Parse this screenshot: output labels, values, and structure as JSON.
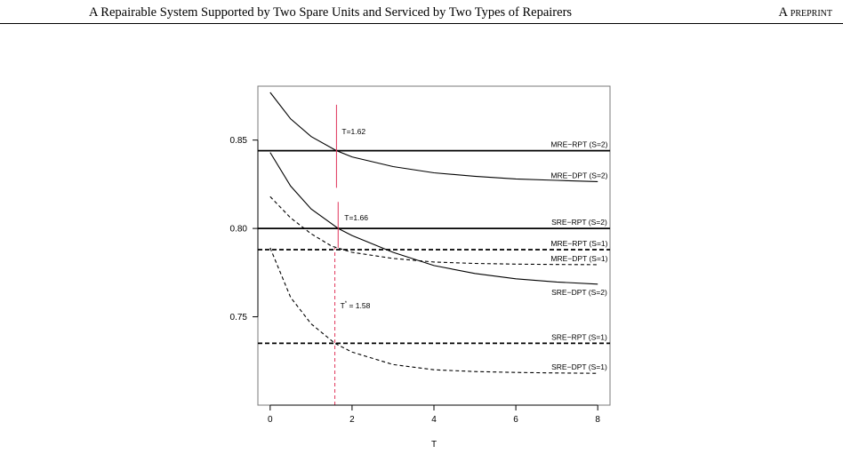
{
  "header": {
    "title": "A Repairable System Supported by Two Spare Units and Serviced by Two Types of Repairers",
    "preprint": "A preprint"
  },
  "chart_data": {
    "type": "line",
    "title": "",
    "xlabel": "T",
    "ylabel": "",
    "xlim": [
      -0.3,
      8.3
    ],
    "ylim": [
      0.7,
      0.8805
    ],
    "xticks": [
      0,
      2,
      4,
      6,
      8
    ],
    "xtick_labels": [
      "0",
      "2",
      "4",
      "6",
      "8"
    ],
    "yticks": [
      0.75,
      0.8,
      0.85
    ],
    "ytick_labels": [
      "0.75",
      "0.80",
      "0.85"
    ],
    "grid": false,
    "series": [
      {
        "name": "MRE−RPT (S=2)",
        "style": "solid",
        "x": [
          -0.3,
          8.3
        ],
        "y": [
          0.844,
          0.844
        ]
      },
      {
        "name": "MRE−DPT (S=2)",
        "style": "solid",
        "x": [
          0,
          0.5,
          1,
          1.62,
          2,
          3,
          4,
          5,
          6,
          7,
          8
        ],
        "y": [
          0.877,
          0.862,
          0.852,
          0.844,
          0.8405,
          0.835,
          0.8315,
          0.8295,
          0.828,
          0.8272,
          0.8265
        ]
      },
      {
        "name": "SRE−RPT (S=2)",
        "style": "solid",
        "x": [
          -0.3,
          8.3
        ],
        "y": [
          0.8,
          0.8
        ]
      },
      {
        "name": "SRE−DPT (S=2)",
        "style": "solid",
        "x": [
          0,
          0.5,
          1,
          1.66,
          2,
          3,
          4,
          5,
          6,
          7,
          8
        ],
        "y": [
          0.843,
          0.824,
          0.811,
          0.8,
          0.796,
          0.7865,
          0.779,
          0.7745,
          0.7715,
          0.7697,
          0.7685
        ]
      },
      {
        "name": "MRE−RPT (S=1)",
        "style": "dashed",
        "x": [
          -0.3,
          8.3
        ],
        "y": [
          0.788,
          0.788
        ]
      },
      {
        "name": "MRE−DPT (S=1)",
        "style": "dashed",
        "x": [
          0,
          0.5,
          1,
          1.5,
          2,
          3,
          4,
          5,
          6,
          7,
          8
        ],
        "y": [
          0.818,
          0.806,
          0.797,
          0.79,
          0.7865,
          0.783,
          0.781,
          0.7802,
          0.7798,
          0.7796,
          0.7795
        ]
      },
      {
        "name": "SRE−RPT (S=1)",
        "style": "dashed",
        "x": [
          -0.3,
          8.3
        ],
        "y": [
          0.735,
          0.735
        ]
      },
      {
        "name": "SRE−DPT (S=1)",
        "style": "dashed",
        "x": [
          0,
          0.5,
          1,
          1.58,
          2,
          3,
          4,
          5,
          6,
          7,
          8
        ],
        "y": [
          0.789,
          0.761,
          0.746,
          0.735,
          0.73,
          0.723,
          0.72,
          0.719,
          0.7185,
          0.7182,
          0.718
        ]
      }
    ],
    "annotations": [
      {
        "text": "T=1.62",
        "x_value": 1.62,
        "y_range": [
          0.823,
          0.87
        ],
        "line_style": "solid",
        "color": "#e0345a"
      },
      {
        "text": "T=1.66",
        "x_value": 1.66,
        "y_range": [
          0.789,
          0.815
        ],
        "line_style": "solid",
        "color": "#e0345a"
      },
      {
        "text_main": "T",
        "text_sup": "*",
        "text_rest": " = 1.58",
        "x_value": 1.58,
        "y_range": [
          0.7,
          0.789
        ],
        "line_style": "dashed",
        "color": "#e0345a"
      }
    ]
  }
}
